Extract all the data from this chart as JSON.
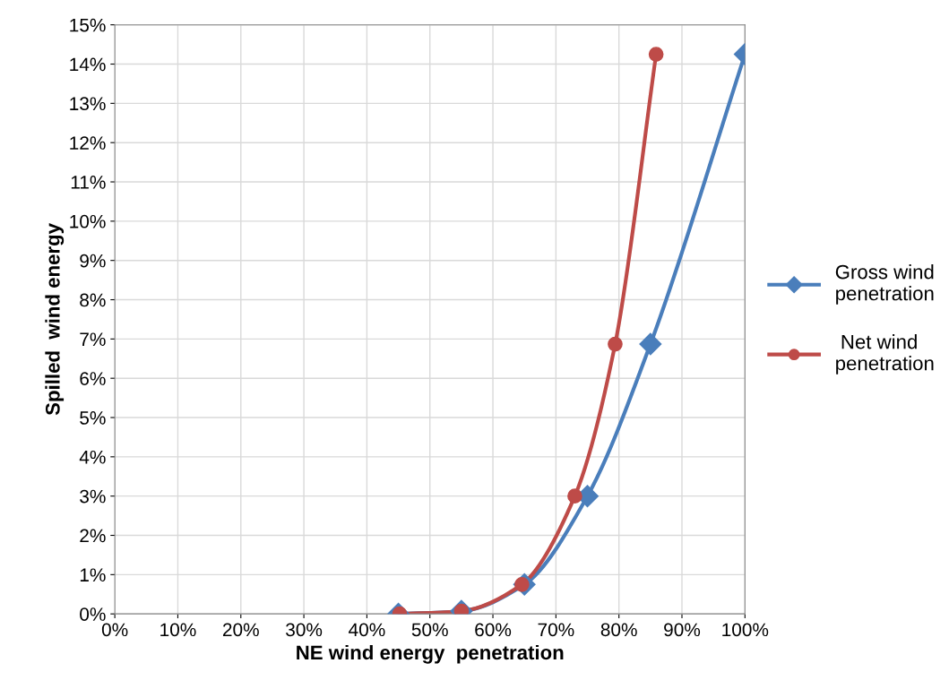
{
  "chart_data": {
    "type": "line",
    "xlabel": "NE wind energy  penetration",
    "ylabel": "Spilled  wind energy",
    "series": [
      {
        "name": "Gross wind\npenetration",
        "color": "#4a7ebb",
        "marker": "diamond",
        "x": [
          45,
          55,
          65,
          75,
          85,
          100
        ],
        "values": [
          0,
          0.07,
          0.75,
          3.0,
          6.87,
          14.25
        ]
      },
      {
        "name": " Net wind\npenetration",
        "color": "#be4b48",
        "marker": "circle",
        "x": [
          45.2,
          55,
          64.6,
          73.0,
          79.4,
          85.9
        ],
        "values": [
          0,
          0.07,
          0.75,
          3.0,
          6.87,
          14.25
        ]
      }
    ],
    "xlim": [
      0,
      100
    ],
    "ylim": [
      0,
      15
    ],
    "xticks": [
      {
        "value": 0,
        "label": "0%"
      },
      {
        "value": 10,
        "label": "10%"
      },
      {
        "value": 20,
        "label": "20%"
      },
      {
        "value": 30,
        "label": "30%"
      },
      {
        "value": 40,
        "label": "40%"
      },
      {
        "value": 50,
        "label": "50%"
      },
      {
        "value": 60,
        "label": "60%"
      },
      {
        "value": 70,
        "label": "70%"
      },
      {
        "value": 80,
        "label": "80%"
      },
      {
        "value": 90,
        "label": "90%"
      },
      {
        "value": 100,
        "label": "100%"
      }
    ],
    "yticks": [
      {
        "value": 0,
        "label": "0%"
      },
      {
        "value": 1,
        "label": "1%"
      },
      {
        "value": 2,
        "label": "2%"
      },
      {
        "value": 3,
        "label": "3%"
      },
      {
        "value": 4,
        "label": "4%"
      },
      {
        "value": 5,
        "label": "5%"
      },
      {
        "value": 6,
        "label": "6%"
      },
      {
        "value": 7,
        "label": "7%"
      },
      {
        "value": 8,
        "label": "8%"
      },
      {
        "value": 9,
        "label": "9%"
      },
      {
        "value": 10,
        "label": "10%"
      },
      {
        "value": 11,
        "label": "11%"
      },
      {
        "value": 12,
        "label": "12%"
      },
      {
        "value": 13,
        "label": "13%"
      },
      {
        "value": 14,
        "label": "14%"
      },
      {
        "value": 15,
        "label": "15%"
      }
    ],
    "grid": true,
    "legend": "right",
    "line_style": "solid"
  }
}
